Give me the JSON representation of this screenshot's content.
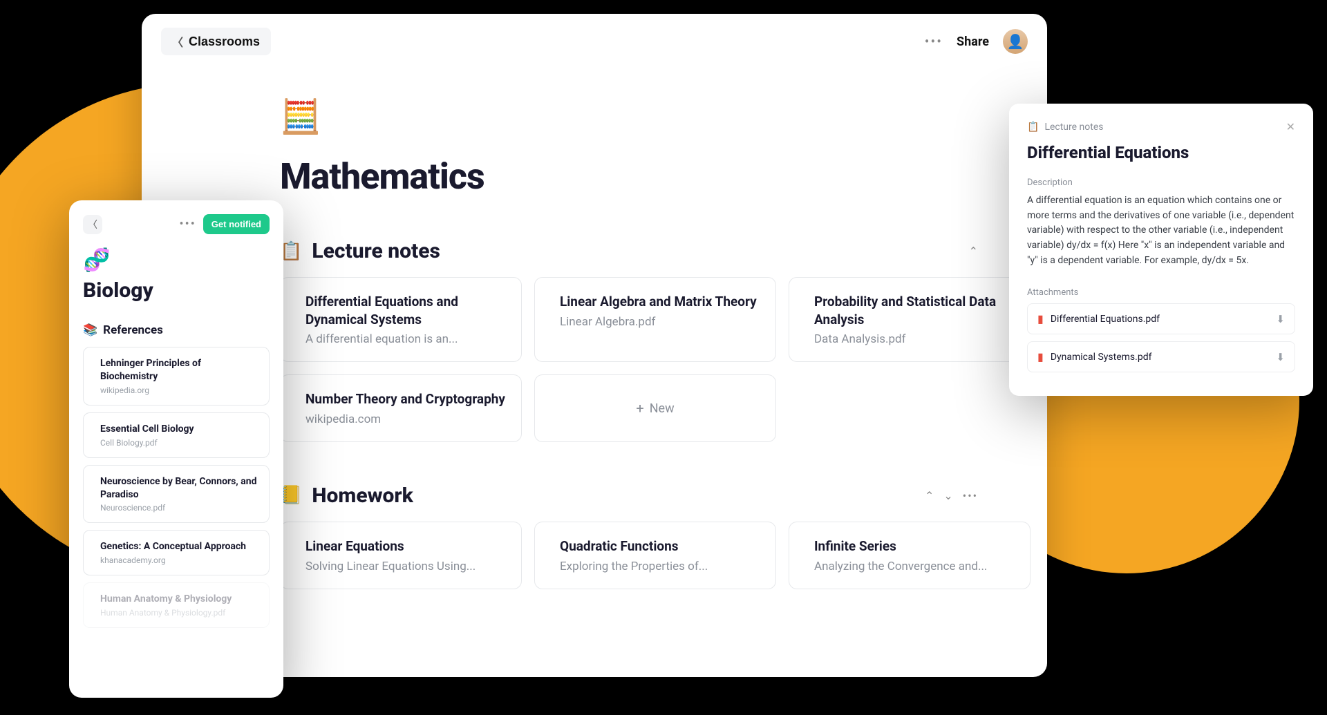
{
  "colors": {
    "accent_yellow": "#f5a623",
    "green": "#1ec98b",
    "text_primary": "#1a1a2e",
    "text_secondary": "#8a8f98",
    "border": "#e6e8eb"
  },
  "topbar": {
    "back_label": "Classrooms",
    "share_label": "Share"
  },
  "page": {
    "icon": "🧮",
    "title": "Mathematics"
  },
  "lecture_notes": {
    "icon": "📋",
    "title": "Lecture notes",
    "cards": [
      {
        "icon": "lines",
        "title": "Differential Equations and Dynamical Systems",
        "subtitle": "A differential equation is an..."
      },
      {
        "icon": "file",
        "title": "Linear Algebra and Matrix Theory",
        "subtitle": "Linear Algebra.pdf"
      },
      {
        "icon": "file",
        "title": "Probability and Statistical Data Analysis",
        "subtitle": "Data Analysis.pdf"
      },
      {
        "icon": "link",
        "title": "Number Theory and Cryptography",
        "subtitle": "wikipedia.com"
      }
    ],
    "new_label": "New"
  },
  "homework": {
    "icon": "📒",
    "title": "Homework",
    "cards": [
      {
        "icon": "lines",
        "title": "Linear Equations",
        "subtitle": "Solving Linear Equations Using..."
      },
      {
        "icon": "lines",
        "title": "Quadratic Functions",
        "subtitle": "Exploring the Properties of..."
      },
      {
        "icon": "lines",
        "title": "Infinite Series",
        "subtitle": "Analyzing the Convergence and..."
      }
    ]
  },
  "mobile": {
    "notify_label": "Get notified",
    "icon": "🧬",
    "title": "Biology",
    "section_icon": "📚",
    "section_title": "References",
    "refs": [
      {
        "icon": "link",
        "title": "Lehninger Principles of Biochemistry",
        "sub": "wikipedia.org"
      },
      {
        "icon": "file",
        "title": "Essential Cell Biology",
        "sub": "Cell Biology.pdf"
      },
      {
        "icon": "file",
        "title": "Neuroscience by Bear, Connors, and Paradiso",
        "sub": "Neuroscience.pdf"
      },
      {
        "icon": "link",
        "title": "Genetics: A Conceptual Approach",
        "sub": "khanacademy.org"
      },
      {
        "icon": "file",
        "title": "Human Anatomy & Physiology",
        "sub": "Human Anatomy & Physiology.pdf"
      }
    ]
  },
  "detail": {
    "crumb_icon": "📋",
    "crumb": "Lecture notes",
    "title": "Differential Equations",
    "desc_label": "Description",
    "description": "A differential equation is an equation which contains one or more terms and the derivatives of one variable (i.e., dependent variable) with respect to the other variable (i.e., independent variable) dy/dx = f(x) Here \"x\" is an independent variable and \"y\" is a dependent variable. For example, dy/dx = 5x.",
    "attach_label": "Attachments",
    "attachments": [
      {
        "name": "Differential Equations.pdf"
      },
      {
        "name": "Dynamical Systems.pdf"
      }
    ]
  }
}
